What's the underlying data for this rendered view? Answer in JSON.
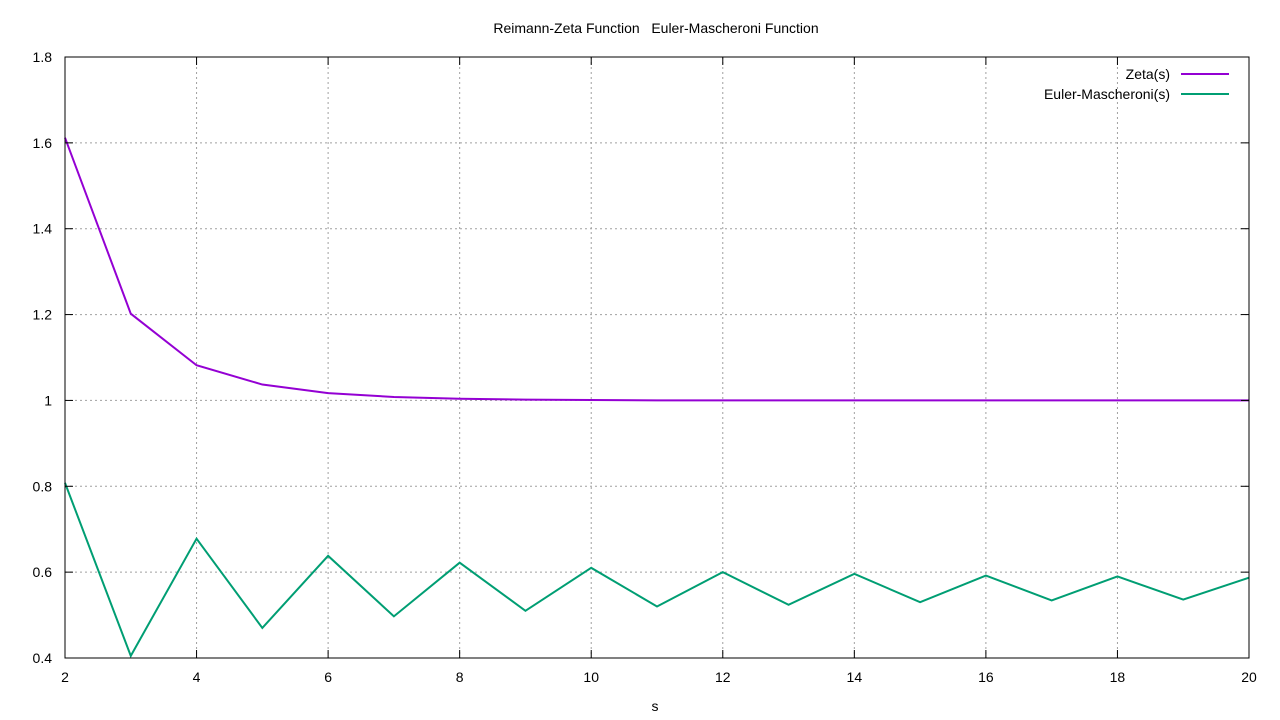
{
  "chart_data": {
    "type": "line",
    "title": "Reimann-Zeta Function   Euler-Mascheroni Function",
    "xlabel": "s",
    "ylabel": "",
    "xlim": [
      2,
      20
    ],
    "ylim": [
      0.4,
      1.8
    ],
    "xticks": [
      2,
      4,
      6,
      8,
      10,
      12,
      14,
      16,
      18,
      20
    ],
    "yticks": [
      0.4,
      0.6,
      0.8,
      1,
      1.2,
      1.4,
      1.6,
      1.8
    ],
    "ytick_labels": [
      "0.4",
      "0.6",
      "0.8",
      "1",
      "1.2",
      "1.4",
      "1.6",
      "1.8"
    ],
    "grid": true,
    "legend_position": "top-right",
    "x": [
      2,
      3,
      4,
      5,
      6,
      7,
      8,
      9,
      10,
      11,
      12,
      13,
      14,
      15,
      16,
      17,
      18,
      19,
      20
    ],
    "series": [
      {
        "name": "Zeta(s)",
        "color": "#9400d3",
        "values": [
          1.612,
          1.202,
          1.082,
          1.037,
          1.017,
          1.008,
          1.004,
          1.002,
          1.001,
          1.0,
          1.0,
          1.0,
          1.0,
          1.0,
          1.0,
          1.0,
          1.0,
          1.0,
          1.0
        ]
      },
      {
        "name": "Euler-Mascheroni(s)",
        "color": "#009e73",
        "values": [
          0.808,
          0.405,
          0.678,
          0.47,
          0.638,
          0.497,
          0.622,
          0.51,
          0.61,
          0.52,
          0.6,
          0.524,
          0.596,
          0.53,
          0.592,
          0.534,
          0.59,
          0.536,
          0.587
        ]
      }
    ]
  }
}
